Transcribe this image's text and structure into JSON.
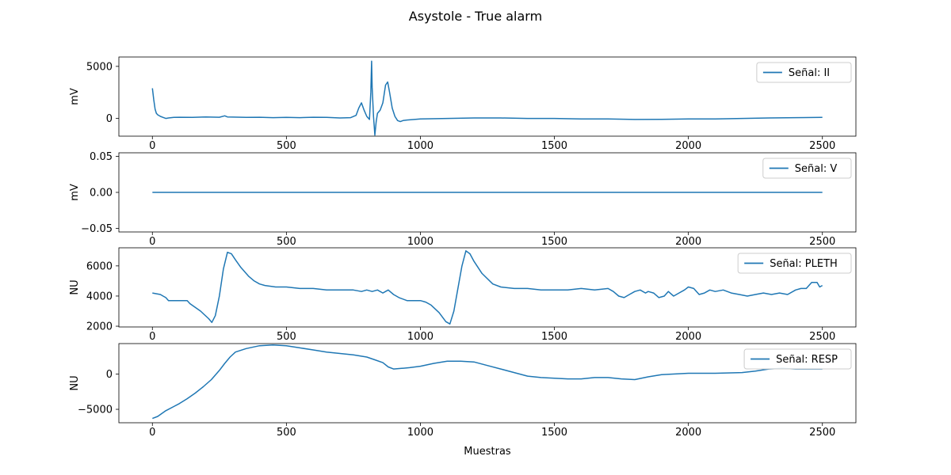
{
  "figure": {
    "title": "Asystole - True alarm"
  },
  "chart_data": [
    {
      "type": "line",
      "title": "",
      "xlabel": "",
      "ylabel": "mV",
      "xlim": [
        -125,
        2625
      ],
      "ylim": [
        -1700,
        5900
      ],
      "xticks": [
        0,
        500,
        1000,
        1500,
        2000,
        2500
      ],
      "yticks": [
        0,
        5000
      ],
      "ytick_labels": [
        "0",
        "5000"
      ],
      "grid": false,
      "legend": "top-right",
      "color": "#1f77b4",
      "series": [
        {
          "name": "Señal: II",
          "x": [
            0,
            5,
            10,
            15,
            20,
            30,
            40,
            50,
            60,
            80,
            100,
            150,
            200,
            250,
            270,
            280,
            300,
            350,
            400,
            450,
            500,
            550,
            600,
            650,
            700,
            740,
            760,
            770,
            780,
            790,
            800,
            810,
            815,
            818,
            820,
            825,
            830,
            835,
            840,
            850,
            860,
            870,
            878,
            885,
            895,
            905,
            915,
            925,
            935,
            950,
            1000,
            1100,
            1200,
            1300,
            1400,
            1500,
            1600,
            1700,
            1800,
            1900,
            2000,
            2100,
            2200,
            2300,
            2400,
            2500
          ],
          "y": [
            2900,
            1800,
            900,
            500,
            350,
            200,
            100,
            0,
            50,
            100,
            120,
            100,
            150,
            120,
            250,
            150,
            130,
            100,
            120,
            80,
            100,
            80,
            120,
            100,
            50,
            80,
            300,
            1000,
            1500,
            800,
            200,
            -100,
            2500,
            5500,
            3000,
            200,
            -1600,
            -300,
            500,
            800,
            1500,
            3200,
            3500,
            2500,
            1000,
            200,
            -200,
            -300,
            -200,
            -150,
            -50,
            0,
            50,
            50,
            0,
            0,
            -50,
            -50,
            -100,
            -80,
            -50,
            -50,
            0,
            50,
            80,
            100
          ]
        }
      ]
    },
    {
      "type": "line",
      "title": "",
      "xlabel": "",
      "ylabel": "mV",
      "xlim": [
        -125,
        2625
      ],
      "ylim": [
        -0.055,
        0.055
      ],
      "xticks": [
        0,
        500,
        1000,
        1500,
        2000,
        2500
      ],
      "yticks": [
        -0.05,
        0,
        0.05
      ],
      "ytick_labels": [
        "−0.05",
        "0.00",
        "0.05"
      ],
      "grid": false,
      "legend": "top-right",
      "color": "#1f77b4",
      "series": [
        {
          "name": "Señal: V",
          "x": [
            0,
            2500
          ],
          "y": [
            0,
            0
          ]
        }
      ]
    },
    {
      "type": "line",
      "title": "",
      "xlabel": "",
      "ylabel": "NU",
      "xlim": [
        -125,
        2625
      ],
      "ylim": [
        1950,
        7200
      ],
      "xticks": [
        0,
        500,
        1000,
        1500,
        2000,
        2500
      ],
      "yticks": [
        2000,
        4000,
        6000
      ],
      "ytick_labels": [
        "2000",
        "4000",
        "6000"
      ],
      "grid": false,
      "legend": "top-right",
      "color": "#1f77b4",
      "series": [
        {
          "name": "Señal: PLETH",
          "x": [
            0,
            30,
            40,
            50,
            60,
            130,
            140,
            180,
            210,
            222,
            235,
            250,
            265,
            280,
            295,
            310,
            330,
            360,
            380,
            400,
            420,
            460,
            500,
            550,
            600,
            650,
            700,
            750,
            780,
            800,
            820,
            840,
            860,
            870,
            880,
            900,
            920,
            950,
            1000,
            1020,
            1040,
            1070,
            1095,
            1110,
            1125,
            1140,
            1155,
            1170,
            1185,
            1200,
            1230,
            1270,
            1300,
            1350,
            1400,
            1450,
            1500,
            1550,
            1600,
            1650,
            1700,
            1720,
            1740,
            1760,
            1780,
            1800,
            1820,
            1840,
            1850,
            1870,
            1890,
            1910,
            1925,
            1945,
            1965,
            1985,
            2000,
            2020,
            2040,
            2060,
            2080,
            2100,
            2130,
            2160,
            2190,
            2220,
            2250,
            2280,
            2310,
            2340,
            2370,
            2400,
            2420,
            2440,
            2460,
            2480,
            2490,
            2500
          ],
          "y": [
            4200,
            4100,
            4000,
            3900,
            3700,
            3700,
            3500,
            3000,
            2500,
            2250,
            2700,
            4000,
            5800,
            6900,
            6800,
            6400,
            5900,
            5300,
            5000,
            4800,
            4700,
            4600,
            4600,
            4500,
            4500,
            4400,
            4400,
            4400,
            4300,
            4400,
            4300,
            4400,
            4200,
            4300,
            4400,
            4100,
            3900,
            3700,
            3700,
            3600,
            3400,
            2900,
            2300,
            2150,
            3000,
            4500,
            6000,
            7000,
            6800,
            6300,
            5500,
            4800,
            4600,
            4500,
            4500,
            4400,
            4400,
            4400,
            4500,
            4400,
            4500,
            4300,
            4000,
            3900,
            4100,
            4300,
            4400,
            4200,
            4300,
            4200,
            3900,
            4000,
            4300,
            4000,
            4200,
            4400,
            4600,
            4500,
            4100,
            4200,
            4400,
            4300,
            4400,
            4200,
            4100,
            4000,
            4100,
            4200,
            4100,
            4200,
            4100,
            4400,
            4500,
            4500,
            4900,
            4900,
            4600,
            4700
          ]
        }
      ]
    },
    {
      "type": "line",
      "title": "",
      "xlabel": "Muestras",
      "ylabel": "NU",
      "xlim": [
        -125,
        2625
      ],
      "ylim": [
        -6900,
        4300
      ],
      "xticks": [
        0,
        500,
        1000,
        1500,
        2000,
        2500
      ],
      "yticks": [
        -5000,
        0
      ],
      "ytick_labels": [
        "−5000",
        "0"
      ],
      "grid": false,
      "legend": "top-right",
      "color": "#1f77b4",
      "series": [
        {
          "name": "Señal: RESP",
          "x": [
            0,
            20,
            50,
            80,
            100,
            130,
            160,
            190,
            220,
            250,
            270,
            290,
            310,
            350,
            400,
            450,
            500,
            550,
            600,
            650,
            700,
            750,
            800,
            830,
            860,
            880,
            900,
            930,
            960,
            1000,
            1050,
            1100,
            1150,
            1200,
            1250,
            1300,
            1350,
            1400,
            1450,
            1500,
            1550,
            1600,
            1650,
            1700,
            1750,
            1800,
            1850,
            1900,
            1950,
            2000,
            2100,
            2200,
            2250,
            2300,
            2350,
            2400,
            2450,
            2500
          ],
          "y": [
            -6300,
            -6000,
            -5200,
            -4600,
            -4200,
            -3500,
            -2700,
            -1800,
            -800,
            500,
            1500,
            2400,
            3100,
            3600,
            4000,
            4100,
            4000,
            3700,
            3400,
            3100,
            2900,
            2700,
            2400,
            2000,
            1600,
            1000,
            700,
            800,
            900,
            1100,
            1500,
            1800,
            1800,
            1700,
            1200,
            700,
            200,
            -300,
            -500,
            -600,
            -700,
            -700,
            -500,
            -500,
            -700,
            -800,
            -400,
            -100,
            0,
            100,
            100,
            200,
            400,
            700,
            800,
            700,
            700,
            700
          ]
        }
      ]
    }
  ]
}
